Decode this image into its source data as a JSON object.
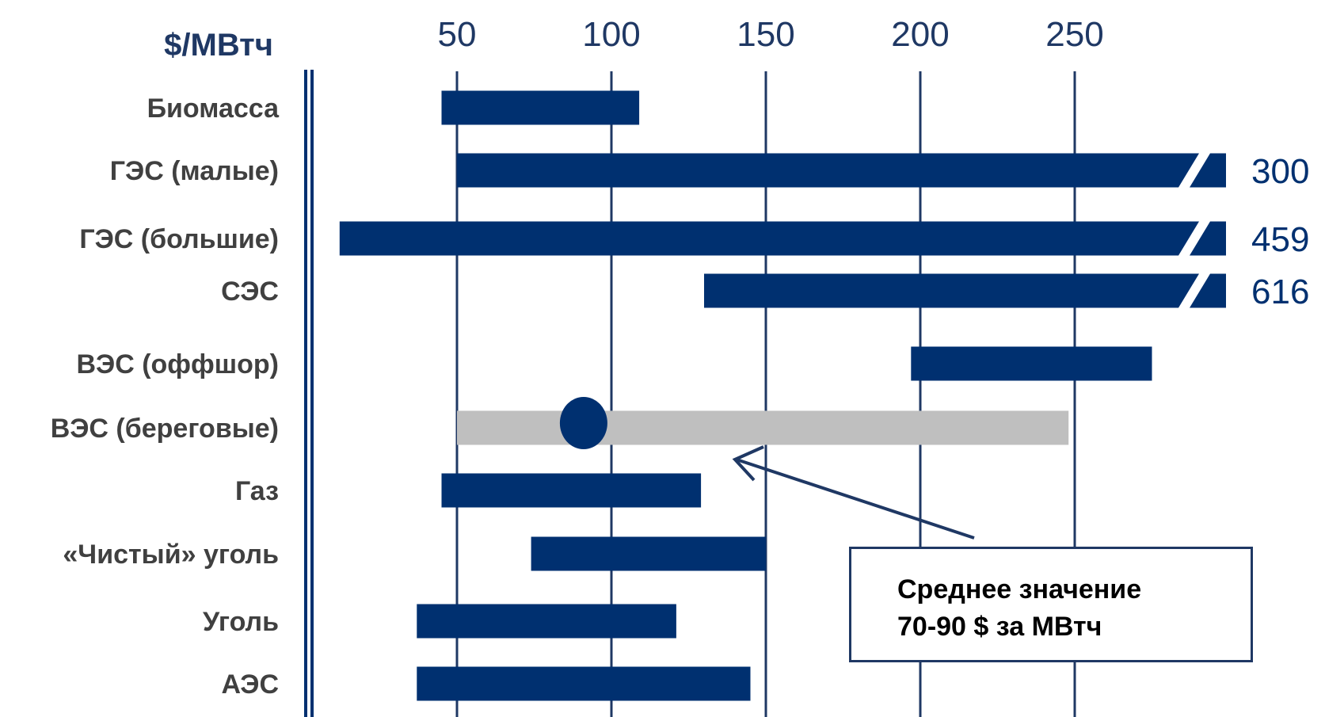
{
  "chart_data": {
    "type": "bar",
    "subtype": "floating-range-horizontal",
    "unit_label": "$/МВтч",
    "x_ticks": [
      50,
      100,
      150,
      200,
      250
    ],
    "xlim": [
      12,
      290
    ],
    "grid": true,
    "categories": [
      {
        "label": "Биомасса",
        "min": 45,
        "max": 109
      },
      {
        "label": "ГЭС (малые)",
        "min": 50,
        "max": 300,
        "clipped": true,
        "max_label": "300"
      },
      {
        "label": "ГЭС (большие)",
        "min": 12,
        "max": 459,
        "clipped": true,
        "max_label": "459"
      },
      {
        "label": "СЭС",
        "min": 130,
        "max": 616,
        "clipped": true,
        "max_label": "616"
      },
      {
        "label": "ВЭС (оффшор)",
        "min": 197,
        "max": 275
      },
      {
        "label": "ВЭС (береговые)",
        "min": 50,
        "max": 248,
        "highlight": true,
        "marker": 91
      },
      {
        "label": "Газ",
        "min": 45,
        "max": 129
      },
      {
        "label": "«Чистый» уголь",
        "min": 74,
        "max": 150
      },
      {
        "label": "Уголь",
        "min": 37,
        "max": 121
      },
      {
        "label": "АЭС",
        "min": 37,
        "max": 145
      }
    ],
    "annotation": {
      "line1": "Среднее значение",
      "line2": "70-90 $ за МВтч"
    },
    "colors": {
      "bar": "#003070",
      "highlight_bar": "#bfbfbf",
      "marker": "#003070",
      "grid": "#1f3864",
      "tick_text": "#1f3864",
      "label_text": "#404040"
    }
  }
}
